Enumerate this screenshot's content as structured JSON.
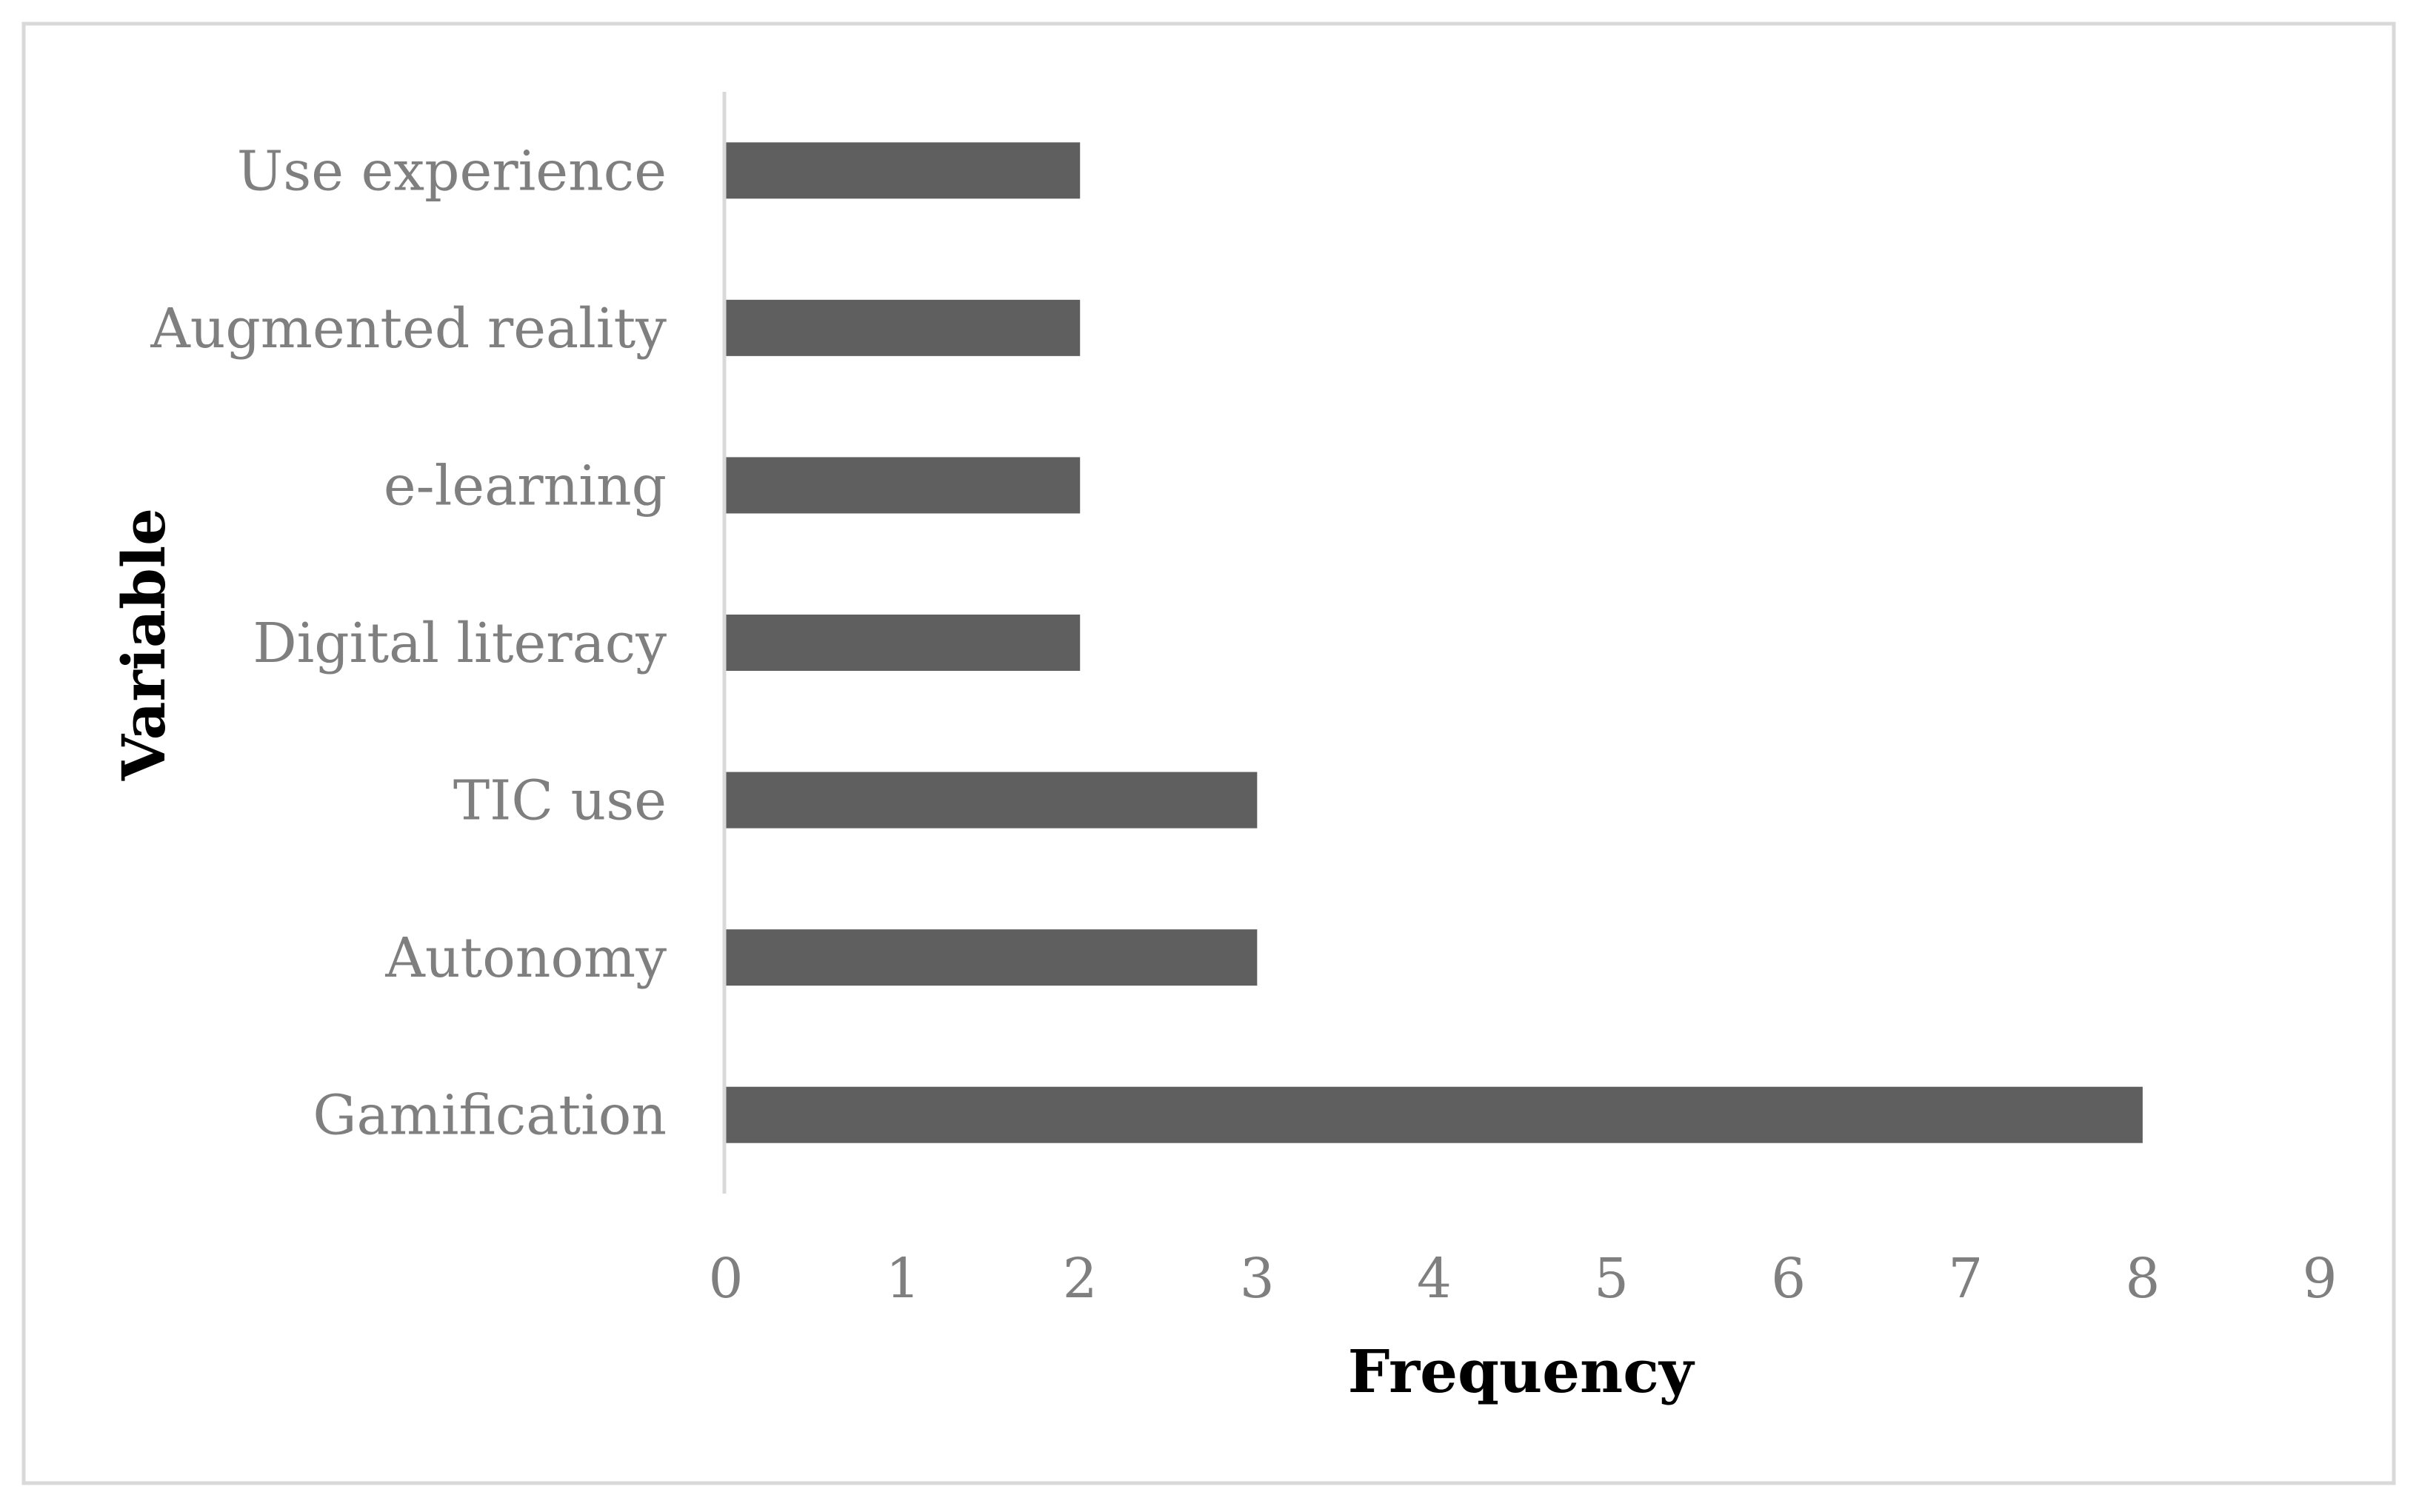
{
  "chart_data": {
    "type": "bar",
    "orientation": "horizontal",
    "categories": [
      "Gamification",
      "Autonomy",
      "TIC use",
      "Digital literacy",
      "e-learning",
      "Augmented reality",
      "Use experience"
    ],
    "values": [
      8,
      3,
      3,
      2,
      2,
      2,
      2
    ],
    "xlabel": "Frequency",
    "ylabel": "Variable",
    "xlim": [
      0,
      9
    ],
    "xticks": [
      "0",
      "1",
      "2",
      "3",
      "4",
      "5",
      "6",
      "7",
      "8",
      "9"
    ],
    "grid": false,
    "legend": "none",
    "colors": {
      "bar": "#5f5f5f",
      "axis": "#d9d9d9",
      "frame": "#d9d9d9",
      "label": "#7f7f7f",
      "title": "#000000"
    }
  }
}
